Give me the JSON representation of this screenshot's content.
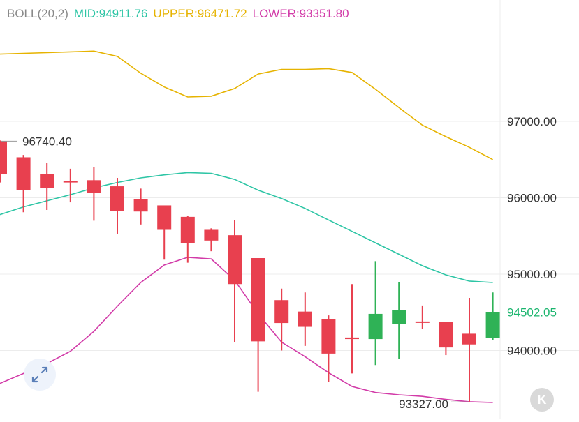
{
  "legend": {
    "name": "BOLL(20,2)",
    "mid_label": "MID:94911.76",
    "upper_label": "UPPER:96471.72",
    "lower_label": "LOWER:93351.80",
    "colors": {
      "name": "#888888",
      "mid": "#2dc5a5",
      "upper": "#e6b300",
      "lower": "#d23ba8"
    }
  },
  "price_tag": {
    "label": "94502.05",
    "value": 94502.05,
    "color": "#1bb56e"
  },
  "expand_icon": "expand-arrows-icon",
  "k_button": {
    "label": "K"
  },
  "colors": {
    "up": "#2fb256",
    "down": "#e8404f",
    "grid": "#ececec"
  },
  "chart_data": {
    "type": "candlestick",
    "y_axis": {
      "ticks": [
        97000,
        96000,
        95000,
        94000
      ],
      "tick_labels": [
        "97000.00",
        "96000.00",
        "95000.00",
        "94000.00"
      ],
      "position": "right"
    },
    "annotations": [
      {
        "label": "96740.40",
        "value": 96740.4
      },
      {
        "label": "93327.00",
        "value": 93327.0
      }
    ],
    "candles": [
      {
        "open": 96740,
        "close": 96310,
        "high": 96750,
        "low": 96200
      },
      {
        "open": 96530,
        "close": 96100,
        "high": 96560,
        "low": 95810
      },
      {
        "open": 96310,
        "close": 96130,
        "high": 96460,
        "low": 95840
      },
      {
        "open": 96220,
        "close": 96200,
        "high": 96380,
        "low": 95940
      },
      {
        "open": 96230,
        "close": 96060,
        "high": 96400,
        "low": 95700
      },
      {
        "open": 96150,
        "close": 95830,
        "high": 96260,
        "low": 95530
      },
      {
        "open": 95980,
        "close": 95820,
        "high": 96120,
        "low": 95650
      },
      {
        "open": 95900,
        "close": 95580,
        "high": 95900,
        "low": 95190
      },
      {
        "open": 95750,
        "close": 95410,
        "high": 95760,
        "low": 95150
      },
      {
        "open": 95580,
        "close": 95440,
        "high": 95600,
        "low": 95300
      },
      {
        "open": 95510,
        "close": 94870,
        "high": 95710,
        "low": 94110
      },
      {
        "open": 95210,
        "close": 94120,
        "high": 95210,
        "low": 93460
      },
      {
        "open": 94660,
        "close": 94360,
        "high": 94810,
        "low": 94000
      },
      {
        "open": 94510,
        "close": 94310,
        "high": 94760,
        "low": 94060
      },
      {
        "open": 94410,
        "close": 93960,
        "high": 94460,
        "low": 93590
      },
      {
        "open": 94170,
        "close": 94150,
        "high": 94870,
        "low": 93700
      },
      {
        "open": 94150,
        "close": 94480,
        "high": 95170,
        "low": 93810
      },
      {
        "open": 94350,
        "close": 94530,
        "high": 94890,
        "low": 93890
      },
      {
        "open": 94380,
        "close": 94370,
        "high": 94590,
        "low": 94280
      },
      {
        "open": 94370,
        "close": 94040,
        "high": 94370,
        "low": 93940
      },
      {
        "open": 94220,
        "close": 94080,
        "high": 94690,
        "low": 93330
      },
      {
        "open": 94160,
        "close": 94500,
        "high": 94760,
        "low": 94140
      }
    ],
    "boll_upper": [
      97880,
      97890,
      97900,
      97910,
      97920,
      97850,
      97630,
      97450,
      97320,
      97330,
      97430,
      97620,
      97680,
      97680,
      97690,
      97640,
      97420,
      97180,
      96950,
      96800,
      96660,
      96500
    ],
    "boll_mid": [
      95780,
      95880,
      95960,
      96040,
      96130,
      96200,
      96260,
      96300,
      96330,
      96320,
      96240,
      96100,
      95990,
      95860,
      95710,
      95560,
      95410,
      95260,
      95110,
      94990,
      94910,
      94890
    ],
    "boll_lower": [
      93570,
      93700,
      93830,
      93990,
      94250,
      94580,
      94890,
      95120,
      95220,
      95200,
      94920,
      94480,
      94110,
      93920,
      93710,
      93530,
      93450,
      93420,
      93400,
      93360,
      93330,
      93320
    ]
  }
}
